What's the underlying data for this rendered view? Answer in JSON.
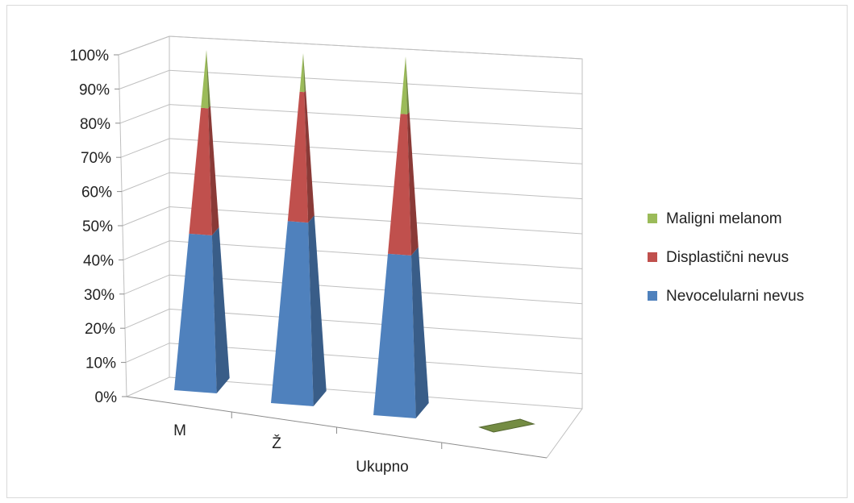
{
  "chart_data": {
    "type": "bar",
    "shape": "3d-pyramid-stacked-percent",
    "categories": [
      "M",
      "Ž",
      "Ukupno",
      ""
    ],
    "yticks": [
      "0%",
      "10%",
      "20%",
      "30%",
      "40%",
      "50%",
      "60%",
      "70%",
      "80%",
      "90%",
      "100%"
    ],
    "ylim": [
      0,
      100
    ],
    "series": [
      {
        "name": "Nevocelularni nevus",
        "values": [
          46,
          52,
          45,
          0
        ],
        "color": "#4F81BD"
      },
      {
        "name": "Displastični nevus",
        "values": [
          37,
          37,
          39,
          0
        ],
        "color": "#C0504D"
      },
      {
        "name": "Maligni melanom",
        "values": [
          17,
          11,
          16,
          0
        ],
        "color": "#9BBB59"
      }
    ],
    "legend_order": [
      "Maligni melanom",
      "Displastični nevus",
      "Nevocelularni nevus"
    ],
    "legend_position": "right",
    "grid": true
  }
}
